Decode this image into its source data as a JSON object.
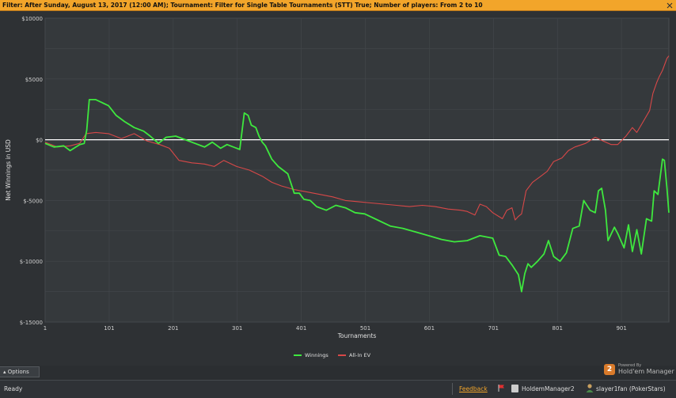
{
  "filter": {
    "text": "Filter: After Sunday, August 13, 2017 (12:00 AM); Tournament: Filter for Single Table Tournaments (STT) True; Number of players: From 2 to 10"
  },
  "chart_data": {
    "type": "line",
    "ylabel": "Net Winnings in USD",
    "xlabel": "Tournaments",
    "ylim": [
      -15000,
      10000
    ],
    "xlim": [
      1,
      975
    ],
    "y_tick_labels": [
      "$10000",
      "$5000",
      "$0",
      "$-5000",
      "$-10000",
      "$-15000"
    ],
    "y_tick_values": [
      10000,
      5000,
      0,
      -5000,
      -10000,
      -15000
    ],
    "x_tick_labels": [
      "1",
      "101",
      "201",
      "301",
      "401",
      "501",
      "601",
      "701",
      "801",
      "901"
    ],
    "x_tick_values": [
      1,
      101,
      201,
      301,
      401,
      501,
      601,
      701,
      801,
      901
    ],
    "grid": true,
    "legend": "bottom-center",
    "series": [
      {
        "name": "Winnings",
        "color": "#3ee83e",
        "points": [
          [
            1,
            -300
          ],
          [
            15,
            -600
          ],
          [
            30,
            -500
          ],
          [
            40,
            -900
          ],
          [
            55,
            -400
          ],
          [
            62,
            -300
          ],
          [
            66,
            800
          ],
          [
            70,
            3300
          ],
          [
            80,
            3300
          ],
          [
            92,
            3000
          ],
          [
            100,
            2800
          ],
          [
            112,
            2000
          ],
          [
            125,
            1500
          ],
          [
            140,
            1000
          ],
          [
            155,
            700
          ],
          [
            165,
            300
          ],
          [
            178,
            -300
          ],
          [
            190,
            200
          ],
          [
            205,
            300
          ],
          [
            220,
            0
          ],
          [
            235,
            -300
          ],
          [
            250,
            -600
          ],
          [
            262,
            -200
          ],
          [
            275,
            -700
          ],
          [
            285,
            -400
          ],
          [
            295,
            -600
          ],
          [
            305,
            -800
          ],
          [
            312,
            2200
          ],
          [
            318,
            2000
          ],
          [
            323,
            1200
          ],
          [
            330,
            1000
          ],
          [
            335,
            300
          ],
          [
            340,
            -200
          ],
          [
            345,
            -500
          ],
          [
            355,
            -1600
          ],
          [
            365,
            -2200
          ],
          [
            380,
            -2800
          ],
          [
            390,
            -4400
          ],
          [
            398,
            -4400
          ],
          [
            405,
            -4900
          ],
          [
            415,
            -5000
          ],
          [
            425,
            -5500
          ],
          [
            440,
            -5800
          ],
          [
            455,
            -5400
          ],
          [
            470,
            -5600
          ],
          [
            485,
            -6000
          ],
          [
            500,
            -6100
          ],
          [
            520,
            -6600
          ],
          [
            540,
            -7100
          ],
          [
            560,
            -7300
          ],
          [
            580,
            -7600
          ],
          [
            600,
            -7900
          ],
          [
            620,
            -8200
          ],
          [
            640,
            -8400
          ],
          [
            660,
            -8300
          ],
          [
            680,
            -7900
          ],
          [
            700,
            -8100
          ],
          [
            710,
            -9500
          ],
          [
            720,
            -9600
          ],
          [
            730,
            -10300
          ],
          [
            740,
            -11100
          ],
          [
            745,
            -12500
          ],
          [
            750,
            -11000
          ],
          [
            755,
            -10200
          ],
          [
            760,
            -10500
          ],
          [
            770,
            -10000
          ],
          [
            780,
            -9400
          ],
          [
            787,
            -8300
          ],
          [
            795,
            -9600
          ],
          [
            805,
            -10000
          ],
          [
            815,
            -9300
          ],
          [
            825,
            -7300
          ],
          [
            835,
            -7100
          ],
          [
            842,
            -5000
          ],
          [
            852,
            -5800
          ],
          [
            860,
            -6000
          ],
          [
            865,
            -4200
          ],
          [
            870,
            -4000
          ],
          [
            876,
            -5800
          ],
          [
            880,
            -8300
          ],
          [
            890,
            -7200
          ],
          [
            895,
            -7700
          ],
          [
            905,
            -8900
          ],
          [
            912,
            -7000
          ],
          [
            918,
            -9200
          ],
          [
            925,
            -7400
          ],
          [
            932,
            -9400
          ],
          [
            940,
            -6500
          ],
          [
            948,
            -6700
          ],
          [
            952,
            -4200
          ],
          [
            958,
            -4500
          ],
          [
            965,
            -1600
          ],
          [
            968,
            -1700
          ],
          [
            972,
            -4000
          ],
          [
            975,
            -6000
          ]
        ]
      },
      {
        "name": "All-In EV",
        "color": "#d84848",
        "points": [
          [
            1,
            -200
          ],
          [
            20,
            -600
          ],
          [
            40,
            -500
          ],
          [
            55,
            -300
          ],
          [
            65,
            500
          ],
          [
            80,
            600
          ],
          [
            100,
            500
          ],
          [
            120,
            100
          ],
          [
            140,
            500
          ],
          [
            160,
            -100
          ],
          [
            180,
            -400
          ],
          [
            195,
            -700
          ],
          [
            210,
            -1700
          ],
          [
            230,
            -1900
          ],
          [
            250,
            -2000
          ],
          [
            265,
            -2200
          ],
          [
            280,
            -1700
          ],
          [
            300,
            -2200
          ],
          [
            320,
            -2500
          ],
          [
            340,
            -3000
          ],
          [
            355,
            -3500
          ],
          [
            370,
            -3800
          ],
          [
            390,
            -4100
          ],
          [
            410,
            -4300
          ],
          [
            430,
            -4500
          ],
          [
            450,
            -4700
          ],
          [
            470,
            -5000
          ],
          [
            490,
            -5100
          ],
          [
            510,
            -5200
          ],
          [
            530,
            -5300
          ],
          [
            550,
            -5400
          ],
          [
            570,
            -5500
          ],
          [
            590,
            -5400
          ],
          [
            610,
            -5500
          ],
          [
            630,
            -5700
          ],
          [
            650,
            -5800
          ],
          [
            660,
            -5900
          ],
          [
            672,
            -6200
          ],
          [
            680,
            -5300
          ],
          [
            690,
            -5500
          ],
          [
            700,
            -6000
          ],
          [
            715,
            -6500
          ],
          [
            722,
            -5800
          ],
          [
            730,
            -5600
          ],
          [
            735,
            -6600
          ],
          [
            740,
            -6300
          ],
          [
            745,
            -6100
          ],
          [
            752,
            -4200
          ],
          [
            762,
            -3500
          ],
          [
            775,
            -3000
          ],
          [
            785,
            -2600
          ],
          [
            795,
            -1800
          ],
          [
            808,
            -1500
          ],
          [
            818,
            -900
          ],
          [
            828,
            -600
          ],
          [
            845,
            -300
          ],
          [
            860,
            200
          ],
          [
            872,
            -100
          ],
          [
            885,
            -400
          ],
          [
            895,
            -400
          ],
          [
            908,
            300
          ],
          [
            918,
            1000
          ],
          [
            925,
            600
          ],
          [
            935,
            1500
          ],
          [
            945,
            2400
          ],
          [
            950,
            3800
          ],
          [
            956,
            4700
          ],
          [
            960,
            5200
          ],
          [
            965,
            5700
          ],
          [
            972,
            6700
          ],
          [
            975,
            6900
          ]
        ]
      }
    ]
  },
  "options": {
    "label": "Options"
  },
  "branding": {
    "powered_by": "Powered By",
    "product": "Hold'em Manager",
    "badge": "2"
  },
  "status": {
    "ready": "Ready",
    "feedback": "Feedback",
    "database": "HoldemManager2",
    "player": "slayer1fan (PokerStars)"
  },
  "colors": {
    "filter_bg": "#f2a52a",
    "accent": "#f2a52a"
  }
}
